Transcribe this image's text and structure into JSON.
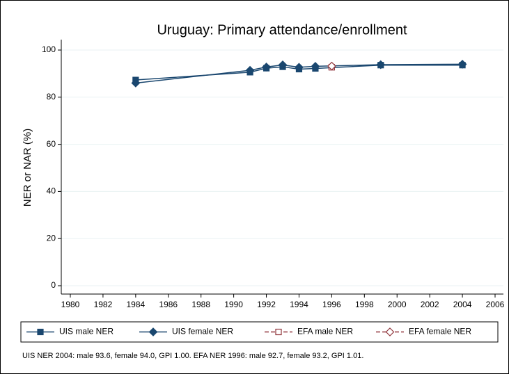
{
  "chart_data": {
    "type": "line",
    "title": "Uruguay: Primary attendance/enrollment",
    "ylabel": "NER or NAR (%)",
    "xlim": [
      1980,
      2006
    ],
    "xticks": [
      1980,
      1982,
      1984,
      1986,
      1988,
      1990,
      1992,
      1994,
      1996,
      1998,
      2000,
      2002,
      2004,
      2006
    ],
    "ylim": [
      0,
      100
    ],
    "yticks": [
      0,
      20,
      40,
      60,
      80,
      100
    ],
    "grid": true,
    "series": [
      {
        "name": "UIS male NER",
        "color": "#1a476f",
        "marker": "square",
        "filled": true,
        "dashed": false,
        "x": [
          1984,
          1991,
          1992,
          1993,
          1994,
          1995,
          1999,
          2004
        ],
        "values": [
          87.3,
          90.6,
          92.3,
          92.9,
          91.9,
          92.2,
          93.6,
          93.6
        ]
      },
      {
        "name": "UIS female NER",
        "color": "#1a476f",
        "marker": "diamond",
        "filled": true,
        "dashed": false,
        "x": [
          1984,
          1991,
          1992,
          1993,
          1994,
          1995,
          1999,
          2004
        ],
        "values": [
          86.0,
          91.4,
          92.8,
          93.7,
          92.7,
          93.1,
          93.8,
          94.0
        ]
      },
      {
        "name": "EFA male NER",
        "color": "#90353b",
        "marker": "square",
        "filled": false,
        "dashed": true,
        "x": [
          1996
        ],
        "values": [
          92.7
        ]
      },
      {
        "name": "EFA female NER",
        "color": "#90353b",
        "marker": "diamond",
        "filled": false,
        "dashed": true,
        "x": [
          1996
        ],
        "values": [
          93.2
        ]
      }
    ],
    "note": "UIS NER 2004: male 93.6, female 94.0, GPI 1.00. EFA NER 1996: male 92.7, female 93.2, GPI 1.01."
  }
}
